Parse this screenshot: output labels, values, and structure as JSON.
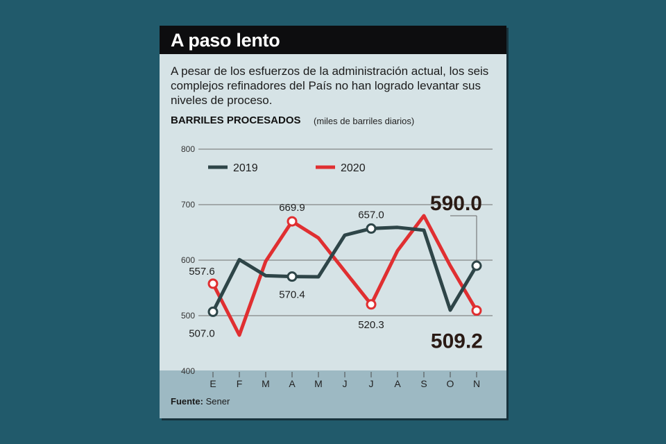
{
  "title": "A paso lento",
  "subtitle": "A pesar de los esfuerzos de la administración actual, los seis complejos refinadores del País no han logrado levantar sus niveles de proceso.",
  "section_label": "BARRILES PROCESADOS",
  "section_unit": "(miles de barriles diarios)",
  "footer": {
    "label": "Fuente:",
    "value": "Sener"
  },
  "colors": {
    "series_2019": "#2e4548",
    "series_2020": "#e02f31"
  },
  "chart_data": {
    "type": "line",
    "title": "",
    "xlabel": "",
    "ylabel": "",
    "ylim": [
      400,
      800
    ],
    "yticks": [
      400,
      500,
      600,
      700,
      800
    ],
    "grid": true,
    "legend": "top-left",
    "categories": [
      "E",
      "F",
      "M",
      "A",
      "M",
      "J",
      "J",
      "A",
      "S",
      "O",
      "N"
    ],
    "series": [
      {
        "name": "2019",
        "values": [
          507.0,
          601,
          572,
          570.4,
          570,
          645,
          657.0,
          659,
          654,
          510,
          590.0
        ]
      },
      {
        "name": "2020",
        "values": [
          557.6,
          465,
          598,
          669.9,
          640,
          580,
          520.3,
          617,
          680,
          590,
          509.2
        ]
      }
    ],
    "annotations": [
      {
        "series": 0,
        "index": 0,
        "text": "507.0",
        "big": false
      },
      {
        "series": 0,
        "index": 3,
        "text": "570.4",
        "big": false
      },
      {
        "series": 0,
        "index": 6,
        "text": "657.0",
        "big": false
      },
      {
        "series": 0,
        "index": 10,
        "text": "590.0",
        "big": true
      },
      {
        "series": 1,
        "index": 0,
        "text": "557.6",
        "big": false
      },
      {
        "series": 1,
        "index": 3,
        "text": "669.9",
        "big": false
      },
      {
        "series": 1,
        "index": 6,
        "text": "520.3",
        "big": false
      },
      {
        "series": 1,
        "index": 10,
        "text": "509.2",
        "big": true
      }
    ]
  }
}
